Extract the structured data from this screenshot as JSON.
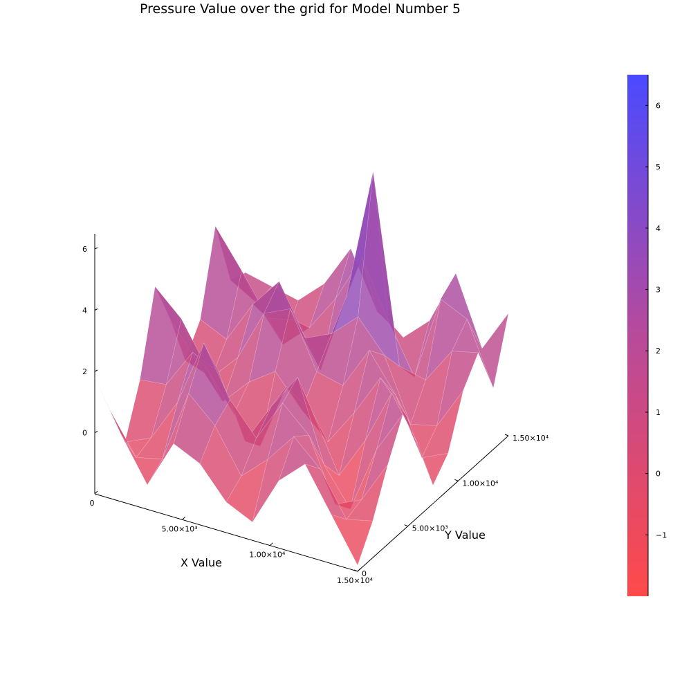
{
  "chart_data": {
    "type": "surface",
    "title": "Pressure Value over the grid for Model Number 5",
    "xlabel": "X Value",
    "ylabel": "Y Value",
    "zlabel": "",
    "x_ticks": [
      "0",
      "5.00×10³",
      "1.00×10⁴",
      "1.50×10⁴"
    ],
    "y_ticks": [
      "0",
      "5.00×10³",
      "1.00×10⁴",
      "1.50×10⁴"
    ],
    "z_ticks": [
      "0",
      "2",
      "4",
      "6"
    ],
    "x_range": [
      0,
      15000
    ],
    "y_range": [
      0,
      15000
    ],
    "z_range": [
      -2.0,
      6.5
    ],
    "x": [
      0,
      1500,
      3000,
      4500,
      6000,
      7500,
      9000,
      10500,
      12000,
      13500,
      15000
    ],
    "y": [
      0,
      1500,
      3000,
      4500,
      6000,
      7500,
      9000,
      10500,
      12000,
      13500,
      15000
    ],
    "z": [
      [
        1.8,
        0.3,
        -1.2,
        0.4,
        3.0,
        1.5,
        -0.3,
        0.6,
        3.2,
        1.0,
        0.8
      ],
      [
        0.2,
        -1.0,
        -0.8,
        0.5,
        2.2,
        0.4,
        -0.6,
        0.2,
        2.0,
        0.5,
        0.6
      ],
      [
        -1.2,
        -0.8,
        0.6,
        1.8,
        0.8,
        -0.7,
        0.3,
        1.6,
        0.7,
        -0.6,
        0.4
      ],
      [
        0.4,
        1.6,
        2.8,
        1.4,
        -0.4,
        0.2,
        2.0,
        2.6,
        0.9,
        0.2,
        1.2
      ],
      [
        0.0,
        0.8,
        1.2,
        -0.6,
        -1.2,
        0.8,
        2.4,
        1.0,
        -0.5,
        1.4,
        2.6
      ],
      [
        -1.0,
        -0.6,
        0.2,
        0.8,
        1.0,
        -0.2,
        0.6,
        1.4,
        2.2,
        3.0,
        0.8
      ],
      [
        -1.4,
        0.2,
        1.6,
        2.0,
        0.4,
        -1.0,
        0.4,
        2.2,
        6.5,
        1.2,
        0.2
      ],
      [
        0.2,
        1.2,
        0.8,
        -0.6,
        -1.4,
        0.2,
        1.8,
        1.2,
        0.4,
        -0.4,
        1.0
      ],
      [
        1.0,
        0.4,
        -1.2,
        -1.8,
        0.0,
        1.6,
        0.6,
        -0.8,
        0.2,
        2.4,
        2.8
      ],
      [
        -0.4,
        -1.0,
        -0.8,
        0.4,
        1.8,
        0.6,
        -1.2,
        -0.6,
        1.4,
        2.0,
        0.6
      ],
      [
        -1.8,
        -0.8,
        0.6,
        1.8,
        0.4,
        -1.4,
        -0.8,
        0.8,
        1.6,
        0.0,
        2.0
      ]
    ],
    "colorbar": {
      "ticks": [
        "−1",
        "0",
        "1",
        "2",
        "3",
        "4",
        "5",
        "6"
      ],
      "tick_values": [
        -1,
        0,
        1,
        2,
        3,
        4,
        5,
        6
      ],
      "range": [
        -2.0,
        6.5
      ],
      "color_low": "#ff4a4a",
      "color_high": "#4a4aff"
    },
    "legend": "none",
    "grid": true
  }
}
